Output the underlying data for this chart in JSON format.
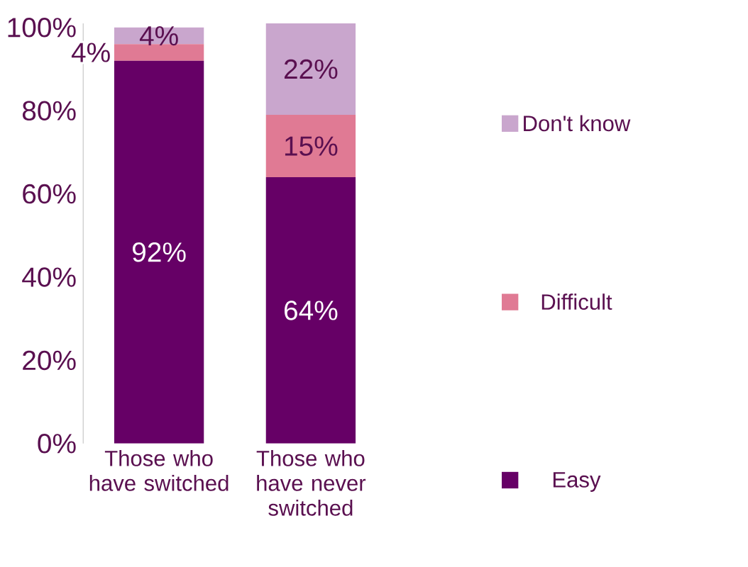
{
  "chart_data": {
    "type": "bar",
    "stacked": true,
    "categories": [
      "Those who have switched",
      "Those who have never switched"
    ],
    "series": [
      {
        "name": "Easy",
        "color": "#660066",
        "values": [
          92,
          64
        ],
        "value_labels": [
          "92%",
          "64%"
        ]
      },
      {
        "name": "Difficult",
        "color": "#e07a94",
        "values": [
          4,
          15
        ],
        "value_labels": [
          "4%",
          "15%"
        ]
      },
      {
        "name": "Don't know",
        "color": "#c9a6cd",
        "values": [
          4,
          22
        ],
        "value_labels": [
          "4%",
          "22%"
        ]
      }
    ],
    "ylim": [
      0,
      101
    ],
    "yticks": [
      {
        "value": 0,
        "label": "0%"
      },
      {
        "value": 20,
        "label": "20%"
      },
      {
        "value": 40,
        "label": "40%"
      },
      {
        "value": 60,
        "label": "60%"
      },
      {
        "value": 80,
        "label": "80%"
      },
      {
        "value": 100,
        "label": "100%"
      }
    ],
    "grid": false,
    "legend": "right"
  }
}
